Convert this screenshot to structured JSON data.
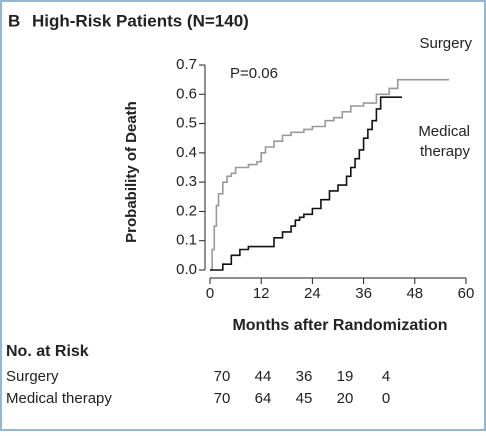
{
  "chart_data": {
    "type": "step",
    "panel": "B",
    "title": "High-Risk Patients (N=140)",
    "y_label": "Probability of Death",
    "x_label": "Months after Randomization",
    "annotation": "P=0.06",
    "xlim": [
      0,
      60
    ],
    "xticks": [
      0,
      12,
      24,
      36,
      48,
      60
    ],
    "ylim": [
      0,
      0.7
    ],
    "yticks": [
      {
        "value": 0,
        "label": "0.0"
      },
      0.1,
      0.2,
      0.3,
      0.4,
      0.5,
      0.6,
      0.7
    ],
    "series": [
      {
        "name": "Surgery",
        "color": "#9a9a9a",
        "x": [
          0,
          0.5,
          1,
          1.5,
          2,
          3,
          4,
          5,
          6,
          9,
          11,
          12,
          13,
          15,
          17,
          19,
          22,
          24,
          27,
          29,
          31,
          33,
          36,
          39,
          42,
          44,
          56
        ],
        "values": [
          0,
          0.07,
          0.15,
          0.22,
          0.26,
          0.3,
          0.32,
          0.33,
          0.35,
          0.36,
          0.37,
          0.4,
          0.42,
          0.44,
          0.46,
          0.47,
          0.48,
          0.49,
          0.51,
          0.52,
          0.54,
          0.56,
          0.57,
          0.6,
          0.62,
          0.65,
          0.65
        ]
      },
      {
        "name": "Medical therapy",
        "color": "#111111",
        "x": [
          0,
          3,
          5,
          7,
          9,
          15,
          17,
          19,
          20,
          21,
          22,
          24,
          26,
          28,
          30,
          32,
          33,
          34,
          35,
          36,
          37,
          38,
          39,
          40,
          45
        ],
        "values": [
          0,
          0.02,
          0.05,
          0.07,
          0.08,
          0.11,
          0.13,
          0.15,
          0.17,
          0.18,
          0.19,
          0.21,
          0.24,
          0.27,
          0.29,
          0.32,
          0.35,
          0.38,
          0.41,
          0.45,
          0.48,
          0.51,
          0.55,
          0.59,
          0.59
        ]
      }
    ],
    "at_risk": {
      "title": "No. at Risk",
      "rows": [
        {
          "label": "Surgery",
          "values": [
            70,
            44,
            36,
            19,
            4
          ]
        },
        {
          "label": "Medical therapy",
          "values": [
            70,
            64,
            45,
            20,
            0
          ]
        }
      ]
    }
  }
}
